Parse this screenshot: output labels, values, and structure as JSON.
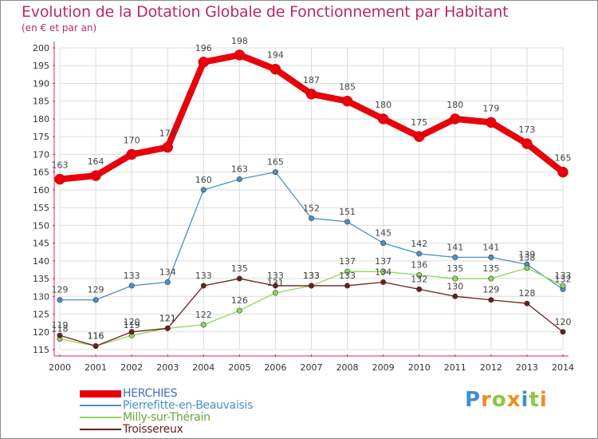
{
  "title": "Evolution de la Dotation Globale de Fonctionnement par Habitant",
  "subtitle": "(en € et par an)",
  "colors": {
    "text": "#b52a6b",
    "axis": "#e0226a",
    "grid": "#dcdcdc"
  },
  "chart_data": {
    "type": "line",
    "title": "Evolution de la Dotation Globale de Fonctionnement par Habitant",
    "subtitle": "(en € et par an)",
    "xlabel": "",
    "ylabel": "",
    "x": [
      "2000",
      "2001",
      "2002",
      "2003",
      "2004",
      "2005",
      "2006",
      "2007",
      "2008",
      "2009",
      "2010",
      "2011",
      "2012",
      "2013",
      "2014"
    ],
    "ylim": [
      115,
      200
    ],
    "yticks": [
      115,
      120,
      125,
      130,
      135,
      140,
      145,
      150,
      155,
      160,
      165,
      170,
      175,
      180,
      185,
      190,
      195,
      200
    ],
    "grid": true,
    "legend_position": "bottom-left",
    "series": [
      {
        "name": "HERCHIES",
        "color": "#e8000b",
        "values": [
          163,
          164,
          170,
          172,
          196,
          198,
          194,
          187,
          185,
          180,
          175,
          180,
          179,
          173,
          165
        ]
      },
      {
        "name": "Pierrefitte-en-Beauvaisis",
        "color": "#4d8fc7",
        "values": [
          129,
          129,
          133,
          134,
          160,
          163,
          165,
          152,
          151,
          145,
          142,
          141,
          141,
          139,
          132
        ]
      },
      {
        "name": "Milly-sur-Thérain",
        "color": "#8fd65a",
        "values": [
          118,
          116,
          119,
          121,
          122,
          126,
          131,
          133,
          137,
          137,
          136,
          135,
          135,
          138,
          133
        ]
      },
      {
        "name": "Troissereux",
        "color": "#6b1e1e",
        "values": [
          119,
          116,
          120,
          121,
          133,
          135,
          133,
          133,
          133,
          134,
          132,
          130,
          129,
          128,
          120
        ]
      }
    ]
  },
  "logo": {
    "text": "Proxiti",
    "letters": [
      "P",
      "r",
      "o",
      "x",
      "i",
      "t",
      "i"
    ],
    "colors": [
      "#3f8fd1",
      "#f08c1e",
      "#8cc63f",
      "#f08c1e",
      "#3f8fd1",
      "#8cc63f",
      "#f08c1e"
    ]
  }
}
